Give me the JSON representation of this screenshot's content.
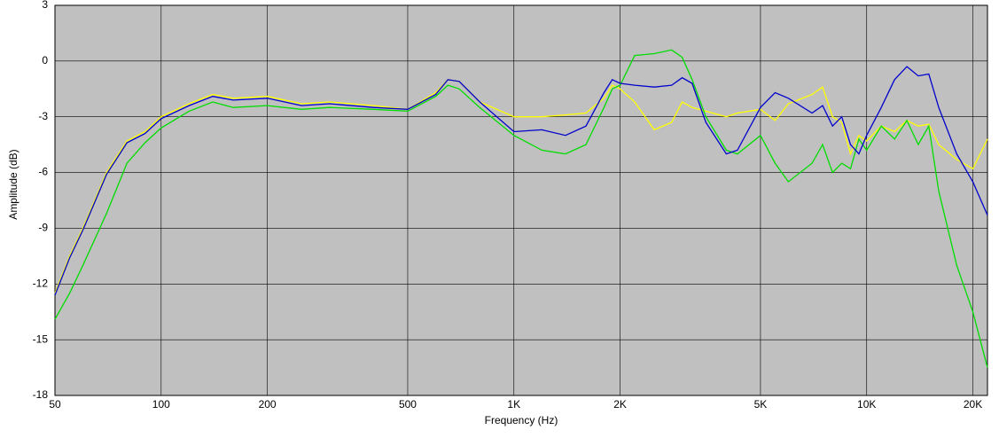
{
  "chart_data": {
    "type": "line",
    "x_label": "Frequency (Hz)",
    "y_label": "Amplitude (dB)",
    "log_x": true,
    "grid": true,
    "xlim": [
      50,
      22000
    ],
    "ylim": [
      -18,
      3
    ],
    "xticks": [
      50,
      100,
      200,
      500,
      {
        "value": 1000,
        "label": "1K"
      },
      {
        "value": 2000,
        "label": "2K"
      },
      {
        "value": 5000,
        "label": "5K"
      },
      {
        "value": 10000,
        "label": "10K"
      },
      {
        "value": 20000,
        "label": "20K"
      }
    ],
    "yticks": [
      3,
      0,
      -3,
      -6,
      -9,
      -12,
      -15,
      -18
    ],
    "x": [
      50,
      55,
      60,
      70,
      80,
      90,
      100,
      120,
      140,
      160,
      200,
      250,
      300,
      400,
      500,
      600,
      650,
      700,
      800,
      1000,
      1200,
      1400,
      1600,
      1800,
      1900,
      2000,
      2200,
      2500,
      2800,
      3000,
      3200,
      3500,
      4000,
      4300,
      5000,
      5500,
      6000,
      7000,
      7500,
      8000,
      8500,
      9000,
      9500,
      10000,
      11000,
      12000,
      13000,
      14000,
      15000,
      16000,
      18000,
      20000,
      22000
    ],
    "series": [
      {
        "color": "#ffff00",
        "values": [
          -12.5,
          -10.5,
          -9,
          -6,
          -4.3,
          -3.8,
          -3,
          -2.3,
          -1.8,
          -2,
          -1.9,
          -2.3,
          -2.2,
          -2.4,
          -2.6,
          -1.7,
          -1,
          -1.1,
          -2.2,
          -3,
          -3,
          -2.9,
          -2.8,
          -2,
          -1.3,
          -1.5,
          -2.2,
          -3.7,
          -3.3,
          -2.2,
          -2.5,
          -2.7,
          -3,
          -2.8,
          -2.6,
          -3.2,
          -2.3,
          -1.8,
          -1.4,
          -3,
          -3.3,
          -5,
          -4,
          -4.3,
          -3.5,
          -3.8,
          -3.2,
          -3.5,
          -3.4,
          -4.5,
          -5.3,
          -5.8,
          -4.2
        ]
      },
      {
        "color": "#00dd00",
        "values": [
          -13.9,
          -12.5,
          -11,
          -8.2,
          -5.5,
          -4.4,
          -3.6,
          -2.7,
          -2.2,
          -2.5,
          -2.4,
          -2.6,
          -2.5,
          -2.6,
          -2.7,
          -1.9,
          -1.3,
          -1.5,
          -2.5,
          -4,
          -4.8,
          -5,
          -4.5,
          -2.5,
          -1.5,
          -1.3,
          0.3,
          0.4,
          0.6,
          0.2,
          -1,
          -3,
          -4.8,
          -5,
          -4,
          -5.5,
          -6.5,
          -5.5,
          -4.5,
          -6,
          -5.5,
          -5.8,
          -4.2,
          -4.8,
          -3.5,
          -4.2,
          -3.2,
          -4.5,
          -3.5,
          -7,
          -11,
          -13.5,
          -16.5
        ]
      },
      {
        "color": "#0000cc",
        "values": [
          -12.6,
          -10.6,
          -9.1,
          -6.1,
          -4.4,
          -3.9,
          -3.1,
          -2.4,
          -1.9,
          -2.1,
          -2,
          -2.4,
          -2.3,
          -2.5,
          -2.6,
          -1.8,
          -1,
          -1.1,
          -2.2,
          -3.8,
          -3.7,
          -4,
          -3.5,
          -1.7,
          -1,
          -1.2,
          -1.3,
          -1.4,
          -1.3,
          -0.9,
          -1.2,
          -3.3,
          -5,
          -4.8,
          -2.5,
          -1.7,
          -2,
          -2.8,
          -2.4,
          -3.5,
          -3,
          -4.5,
          -5,
          -4,
          -2.5,
          -1,
          -0.3,
          -0.8,
          -0.7,
          -2.5,
          -5,
          -6.5,
          -8.3
        ]
      }
    ]
  }
}
